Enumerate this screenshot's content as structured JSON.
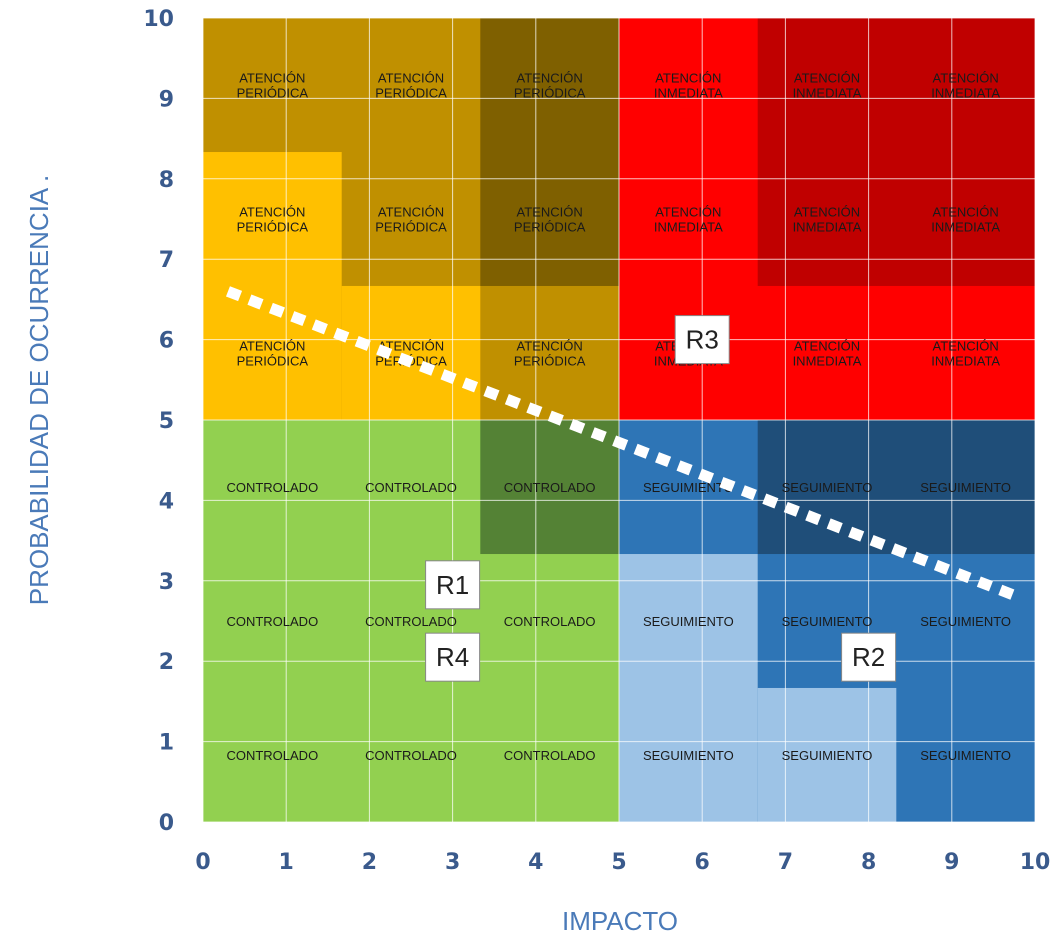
{
  "chart_data": {
    "type": "heatmap",
    "xlabel": "IMPACTO",
    "ylabel": "PROBABILIDAD  DE OCURRENCIA   .",
    "xlim": [
      0,
      10
    ],
    "ylim": [
      0,
      10
    ],
    "x_ticks": [
      "0",
      "1",
      "2",
      "3",
      "4",
      "5",
      "6",
      "7",
      "8",
      "9",
      "10"
    ],
    "y_ticks": [
      "0",
      "1",
      "2",
      "3",
      "4",
      "5",
      "6",
      "7",
      "8",
      "9",
      "10"
    ],
    "grid": true,
    "colors": {
      "light_yellow": "#ffc000",
      "gold": "#c09000",
      "dark_gold": "#7f6000",
      "red": "#ff0000",
      "dark_red": "#c00000",
      "green": "#92d050",
      "dark_green": "#548235",
      "light_blue": "#9dc3e6",
      "blue": "#2e75b6",
      "dark_blue": "#1f4e79",
      "grid": "#ffffff",
      "tick_text": "#3a5a8c",
      "axis_title": "#4a7ab8"
    },
    "zones": [
      {
        "x0": 0,
        "x1": 5,
        "y0": 5,
        "y1": 10,
        "color": "gold"
      },
      {
        "x0": 0,
        "x1": 1.667,
        "y0": 5,
        "y1": 8.333,
        "color": "light_yellow"
      },
      {
        "x0": 1.667,
        "x1": 3.333,
        "y0": 5,
        "y1": 6.667,
        "color": "light_yellow"
      },
      {
        "x0": 3.333,
        "x1": 5,
        "y0": 6.667,
        "y1": 10,
        "color": "dark_gold"
      },
      {
        "x0": 5,
        "x1": 10,
        "y0": 5,
        "y1": 10,
        "color": "red"
      },
      {
        "x0": 6.667,
        "x1": 10,
        "y0": 6.667,
        "y1": 10,
        "color": "dark_red"
      },
      {
        "x0": 0,
        "x1": 5,
        "y0": 0,
        "y1": 5,
        "color": "green"
      },
      {
        "x0": 3.333,
        "x1": 5,
        "y0": 3.333,
        "y1": 5,
        "color": "dark_green"
      },
      {
        "x0": 5,
        "x1": 10,
        "y0": 0,
        "y1": 5,
        "color": "blue"
      },
      {
        "x0": 6.667,
        "x1": 10,
        "y0": 3.333,
        "y1": 5,
        "color": "dark_blue"
      },
      {
        "x0": 5,
        "x1": 6.667,
        "y0": 0,
        "y1": 3.333,
        "color": "light_blue"
      },
      {
        "x0": 6.667,
        "x1": 8.333,
        "y0": 0,
        "y1": 1.667,
        "color": "light_blue"
      }
    ],
    "cell_labels": [
      {
        "col": 0,
        "row": 0,
        "lines": [
          "CONTROLADO"
        ]
      },
      {
        "col": 1,
        "row": 0,
        "lines": [
          "CONTROLADO"
        ]
      },
      {
        "col": 2,
        "row": 0,
        "lines": [
          "CONTROLADO"
        ]
      },
      {
        "col": 3,
        "row": 0,
        "lines": [
          "SEGUIMIENTO"
        ]
      },
      {
        "col": 4,
        "row": 0,
        "lines": [
          "SEGUIMIENTO"
        ]
      },
      {
        "col": 5,
        "row": 0,
        "lines": [
          "SEGUIMIENTO"
        ]
      },
      {
        "col": 0,
        "row": 1,
        "lines": [
          "CONTROLADO"
        ]
      },
      {
        "col": 1,
        "row": 1,
        "lines": [
          "CONTROLADO"
        ]
      },
      {
        "col": 2,
        "row": 1,
        "lines": [
          "CONTROLADO"
        ]
      },
      {
        "col": 3,
        "row": 1,
        "lines": [
          "SEGUIMIENTO"
        ]
      },
      {
        "col": 4,
        "row": 1,
        "lines": [
          "SEGUIMIENTO"
        ]
      },
      {
        "col": 5,
        "row": 1,
        "lines": [
          "SEGUIMIENTO"
        ]
      },
      {
        "col": 0,
        "row": 2,
        "lines": [
          "CONTROLADO"
        ]
      },
      {
        "col": 1,
        "row": 2,
        "lines": [
          "CONTROLADO"
        ]
      },
      {
        "col": 2,
        "row": 2,
        "lines": [
          "CONTROLADO"
        ]
      },
      {
        "col": 3,
        "row": 2,
        "lines": [
          "SEGUIMIENTO"
        ]
      },
      {
        "col": 4,
        "row": 2,
        "lines": [
          "SEGUIMIENTO"
        ]
      },
      {
        "col": 5,
        "row": 2,
        "lines": [
          "SEGUIMIENTO"
        ]
      },
      {
        "col": 0,
        "row": 3,
        "lines": [
          "ATENCIÓN",
          "PERIÓDICA"
        ]
      },
      {
        "col": 1,
        "row": 3,
        "lines": [
          "ATENCIÓN",
          "PERIÓDICA"
        ]
      },
      {
        "col": 2,
        "row": 3,
        "lines": [
          "ATENCIÓN",
          "PERIÓDICA"
        ]
      },
      {
        "col": 3,
        "row": 3,
        "lines": [
          "ATENCIÓN",
          "INMEDIATA"
        ]
      },
      {
        "col": 4,
        "row": 3,
        "lines": [
          "ATENCIÓN",
          "INMEDIATA"
        ]
      },
      {
        "col": 5,
        "row": 3,
        "lines": [
          "ATENCIÓN",
          "INMEDIATA"
        ]
      },
      {
        "col": 0,
        "row": 4,
        "lines": [
          "ATENCIÓN",
          "PERIÓDICA"
        ]
      },
      {
        "col": 1,
        "row": 4,
        "lines": [
          "ATENCIÓN",
          "PERIÓDICA"
        ]
      },
      {
        "col": 2,
        "row": 4,
        "lines": [
          "ATENCIÓN",
          "PERIÓDICA"
        ]
      },
      {
        "col": 3,
        "row": 4,
        "lines": [
          "ATENCIÓN",
          "INMEDIATA"
        ]
      },
      {
        "col": 4,
        "row": 4,
        "lines": [
          "ATENCIÓN",
          "INMEDIATA"
        ]
      },
      {
        "col": 5,
        "row": 4,
        "lines": [
          "ATENCIÓN",
          "INMEDIATA"
        ]
      },
      {
        "col": 0,
        "row": 5,
        "lines": [
          "ATENCIÓN",
          "PERIÓDICA"
        ]
      },
      {
        "col": 1,
        "row": 5,
        "lines": [
          "ATENCIÓN",
          "PERIÓDICA"
        ]
      },
      {
        "col": 2,
        "row": 5,
        "lines": [
          "ATENCIÓN",
          "PERIÓDICA"
        ]
      },
      {
        "col": 3,
        "row": 5,
        "lines": [
          "ATENCIÓN",
          "INMEDIATA"
        ]
      },
      {
        "col": 4,
        "row": 5,
        "lines": [
          "ATENCIÓN",
          "INMEDIATA"
        ]
      },
      {
        "col": 5,
        "row": 5,
        "lines": [
          "ATENCIÓN",
          "INMEDIATA"
        ]
      }
    ],
    "region_labels": [
      {
        "text": "R1",
        "x": 3.0,
        "y": 2.95
      },
      {
        "text": "R4",
        "x": 3.0,
        "y": 2.05
      },
      {
        "text": "R3",
        "x": 6.0,
        "y": 6.0
      },
      {
        "text": "R2",
        "x": 8.0,
        "y": 2.05
      }
    ],
    "trend_line": {
      "x": [
        0.3,
        9.8
      ],
      "y": [
        6.6,
        2.8
      ],
      "style": "dotted",
      "color": "#ffffff"
    }
  }
}
